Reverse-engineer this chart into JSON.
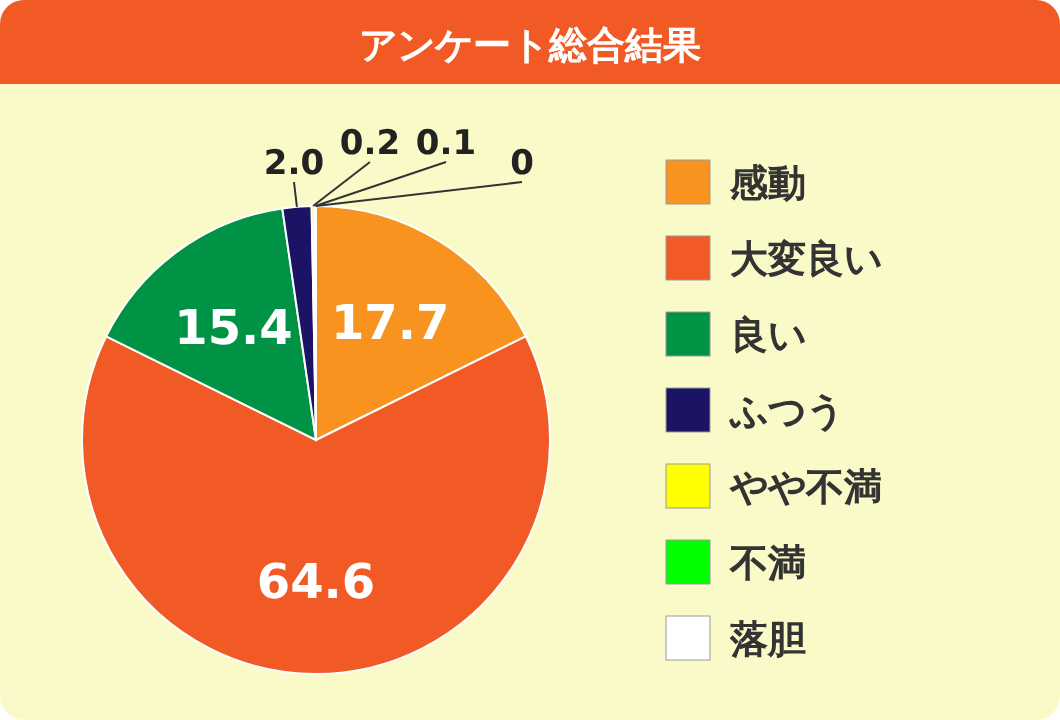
{
  "chart_data": {
    "type": "pie",
    "title": "アンケート総合結果",
    "categories": [
      "感動",
      "大変良い",
      "良い",
      "ふつう",
      "やや不満",
      "不満",
      "落胆"
    ],
    "values": [
      17.7,
      64.6,
      15.4,
      2.0,
      0.2,
      0.1,
      0
    ],
    "value_labels": [
      "17.7",
      "64.6",
      "15.4",
      "2.0",
      "0.2",
      "0.1",
      "0"
    ],
    "colors": [
      "#f7931e",
      "#f15a24",
      "#009245",
      "#1b1464",
      "#ffff00",
      "#00ff00",
      "#ffffff"
    ],
    "legend": "right"
  }
}
